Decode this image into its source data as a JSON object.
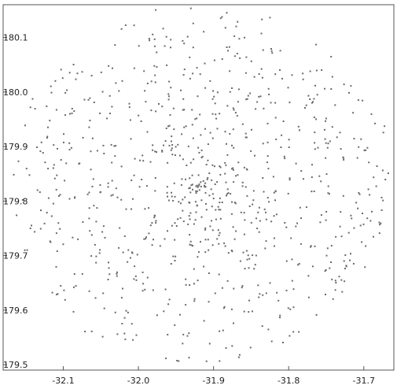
{
  "chart_data": {
    "type": "scatter",
    "title": "",
    "xlabel": "",
    "ylabel": "",
    "xlim": [
      -32.18,
      -31.66
    ],
    "ylim": [
      179.49,
      180.16
    ],
    "x_ticks": [
      -32.1,
      -32.0,
      -31.9,
      -31.8,
      -31.7
    ],
    "x_tick_labels": [
      "-32.1",
      "-32.0",
      "-31.9",
      "-31.8",
      "-31.7"
    ],
    "y_ticks": [
      179.5,
      179.6,
      179.7,
      179.8,
      179.9,
      180.0,
      180.1
    ],
    "y_tick_labels": [
      "179.5",
      "179.6",
      "179.7",
      "179.8",
      "179.9",
      "180.0",
      "180.1"
    ],
    "grid": false,
    "legend": "none",
    "marker_color": "#6a6a6a",
    "point_count": 900,
    "distribution_note": "Dense cluster centered near x=-31.92, y=179.83 with points spreading outward in a roughly circular cloud (radius about 0.25 in x, 0.32 in y)."
  }
}
